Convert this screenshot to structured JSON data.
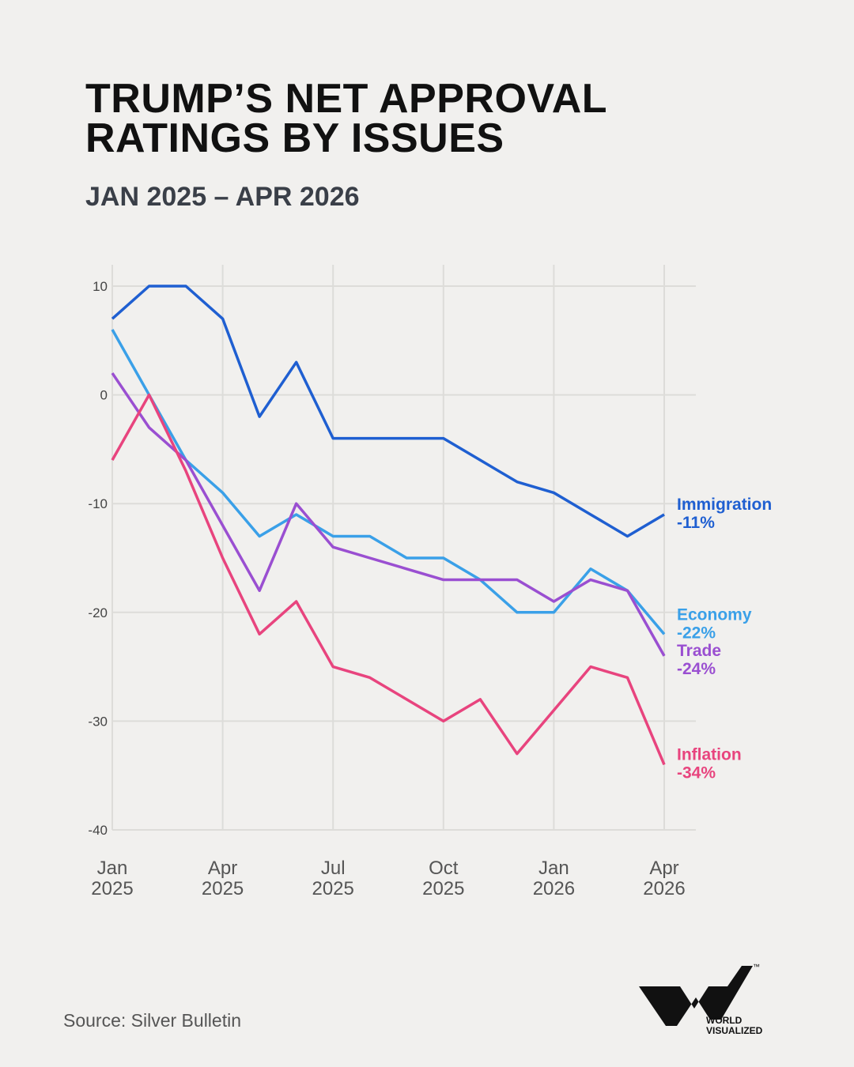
{
  "chart_data": {
    "type": "line",
    "title": "TRUMP’S NET APPROVAL RATINGS BY ISSUES",
    "subtitle": "JAN 2025 – APR 2026",
    "source": "Source: Silver Bulletin",
    "x": [
      "2025-01",
      "2025-02",
      "2025-03",
      "2025-04",
      "2025-05",
      "2025-06",
      "2025-07",
      "2025-08",
      "2025-09",
      "2025-10",
      "2025-11",
      "2025-12",
      "2026-01",
      "2026-02",
      "2026-03",
      "2026-04"
    ],
    "xlim": [
      "2025-01",
      "2026-04"
    ],
    "xticks": [
      {
        "value": "2025-01",
        "label": "Jan 2025"
      },
      {
        "value": "2025-04",
        "label": "Apr 2025"
      },
      {
        "value": "2025-07",
        "label": "Jul 2025"
      },
      {
        "value": "2025-10",
        "label": "Oct 2025"
      },
      {
        "value": "2026-01",
        "label": "Jan 2026"
      },
      {
        "value": "2026-04",
        "label": "Apr 2026"
      }
    ],
    "ylim": [
      -40,
      10
    ],
    "yticks": [
      -40,
      -30,
      -20,
      -10,
      0,
      10
    ],
    "grid": true,
    "series": [
      {
        "name": "Immigration",
        "color": "#1f5fd1",
        "values": [
          7,
          10,
          10,
          7,
          -2,
          3,
          -4,
          -4,
          -4,
          -4,
          -6,
          -8,
          -9,
          -11,
          -13,
          -11
        ],
        "value_labels": [
          null,
          null,
          null,
          null,
          null,
          null,
          null,
          null,
          null,
          null,
          null,
          null,
          null,
          null,
          null,
          "-11%"
        ]
      },
      {
        "name": "Economy",
        "color": "#3aa0e8",
        "values": [
          6,
          0,
          -6,
          -9,
          -13,
          -11,
          -13,
          -13,
          -15,
          -15,
          -17,
          -20,
          -20,
          -16,
          -18,
          -22
        ],
        "value_labels": [
          null,
          null,
          null,
          null,
          null,
          null,
          null,
          null,
          null,
          null,
          null,
          null,
          null,
          null,
          null,
          "-22%"
        ]
      },
      {
        "name": "Trade",
        "color": "#9a4fd1",
        "values": [
          2,
          -3,
          -6,
          -12,
          -18,
          -10,
          -14,
          -15,
          -16,
          -17,
          -17,
          -17,
          -19,
          -17,
          -18,
          -24
        ],
        "value_labels": [
          null,
          null,
          null,
          null,
          null,
          null,
          null,
          null,
          null,
          null,
          null,
          null,
          null,
          null,
          null,
          "-24%"
        ]
      },
      {
        "name": "Inflation",
        "color": "#e8447e",
        "values": [
          -6,
          0,
          -7,
          -15,
          -22,
          -19,
          -25,
          -26,
          -28,
          -30,
          -28,
          -33,
          -29,
          -25,
          -26,
          -34
        ],
        "value_labels": [
          null,
          null,
          null,
          null,
          null,
          null,
          null,
          null,
          null,
          null,
          null,
          null,
          null,
          null,
          null,
          "-34%"
        ]
      }
    ]
  },
  "brand": {
    "name": "WORLD VISUALIZED",
    "mark": "™"
  }
}
